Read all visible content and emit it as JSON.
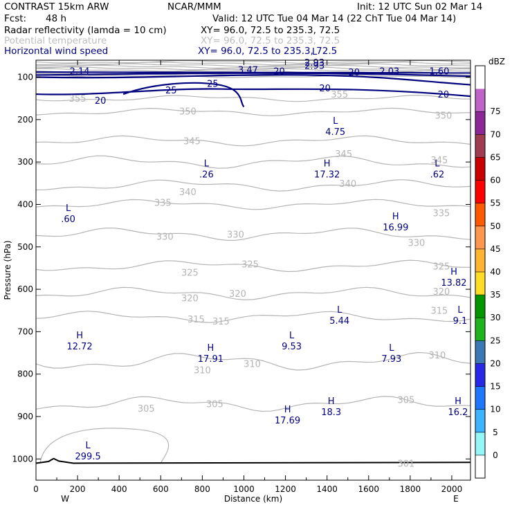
{
  "header": {
    "model": "CONTRAST 15km ARW",
    "org": "NCAR/MMM",
    "init": "Init: 12 UTC Sun 02 Mar 14",
    "fcst_label": "Fcst:",
    "fcst_value": "48 h",
    "valid": "Valid: 12 UTC Tue 04 Mar 14 (22 ChT Tue 04 Mar 14)",
    "fields": [
      {
        "name": "Radar reflectivity (lamda = 10 cm)",
        "xy": "XY=  96.0, 72.5 to 235.3, 72.5",
        "color": "#000000"
      },
      {
        "name": "Potential temperature",
        "xy": "XY=  96.0, 72.5 to 235.3, 72.5",
        "color": "#bdbdbd"
      },
      {
        "name": "Horizontal wind speed",
        "xy": "XY=  96.0, 72.5 to 235.3, 72.5",
        "color": "#00007f"
      }
    ]
  },
  "chart_data": {
    "type": "cross-section",
    "xlabel": "Distance (km)",
    "ylabel": "Pressure (hPa)",
    "xlim": [
      0,
      2090
    ],
    "ylim": [
      1050,
      60
    ],
    "x_ticks": [
      0,
      200,
      400,
      600,
      800,
      1000,
      1200,
      1400,
      1600,
      1800,
      2000
    ],
    "y_ticks": [
      100,
      200,
      300,
      400,
      500,
      600,
      700,
      800,
      900,
      1000
    ],
    "x_end_labels": [
      "W",
      "E"
    ],
    "colorbar": {
      "unit": "dBZ",
      "levels": [
        "0",
        "5",
        "10",
        "15",
        "20",
        "25",
        "30",
        "35",
        "40",
        "45",
        "50",
        "55",
        "60",
        "65",
        "70",
        "75"
      ],
      "colors": [
        "#ffffff",
        "#96f5f5",
        "#3cb4ff",
        "#1e78ff",
        "#2828e6",
        "#3c78b4",
        "#1eb41e",
        "#009600",
        "#ffdc28",
        "#ffb432",
        "#ff9650",
        "#ff5a00",
        "#ff0000",
        "#c80000",
        "#a03c50",
        "#8c2896",
        "#be64c8",
        "#ffffff"
      ]
    },
    "theta_isolines": [
      {
        "label": "355",
        "x": 200,
        "p": 150
      },
      {
        "label": "355",
        "x": 1460,
        "p": 140
      },
      {
        "label": "350",
        "x": 730,
        "p": 180
      },
      {
        "label": "350",
        "x": 1960,
        "p": 190
      },
      {
        "label": "345",
        "x": 750,
        "p": 250
      },
      {
        "label": "345",
        "x": 1480,
        "p": 280
      },
      {
        "label": "345",
        "x": 1940,
        "p": 295
      },
      {
        "label": "340",
        "x": 730,
        "p": 370
      },
      {
        "label": "340",
        "x": 1500,
        "p": 350
      },
      {
        "label": "335",
        "x": 610,
        "p": 395
      },
      {
        "label": "335",
        "x": 1950,
        "p": 420
      },
      {
        "label": "330",
        "x": 620,
        "p": 475
      },
      {
        "label": "330",
        "x": 960,
        "p": 470
      },
      {
        "label": "330",
        "x": 1830,
        "p": 490
      },
      {
        "label": "325",
        "x": 740,
        "p": 560
      },
      {
        "label": "325",
        "x": 1030,
        "p": 540
      },
      {
        "label": "325",
        "x": 1950,
        "p": 545
      },
      {
        "label": "320",
        "x": 740,
        "p": 620
      },
      {
        "label": "320",
        "x": 970,
        "p": 610
      },
      {
        "label": "320",
        "x": 1950,
        "p": 605
      },
      {
        "label": "315",
        "x": 770,
        "p": 670
      },
      {
        "label": "315",
        "x": 890,
        "p": 675
      },
      {
        "label": "315",
        "x": 1940,
        "p": 650
      },
      {
        "label": "310",
        "x": 800,
        "p": 790
      },
      {
        "label": "310",
        "x": 1040,
        "p": 775
      },
      {
        "label": "310",
        "x": 1930,
        "p": 755
      },
      {
        "label": "305",
        "x": 530,
        "p": 880
      },
      {
        "label": "305",
        "x": 860,
        "p": 870
      },
      {
        "label": "305",
        "x": 1780,
        "p": 860
      },
      {
        "label": "301",
        "x": 1780,
        "p": 1010
      }
    ],
    "wind_labels": [
      {
        "label": "2.14",
        "x": 210,
        "p": 85
      },
      {
        "label": "3.47",
        "x": 1020,
        "p": 82
      },
      {
        "label": "20",
        "x": 1170,
        "p": 85
      },
      {
        "label": "2.93",
        "x": 1340,
        "p": 72
      },
      {
        "label": "20",
        "x": 1530,
        "p": 88
      },
      {
        "label": "2.03",
        "x": 1700,
        "p": 85
      },
      {
        "label": "1.60",
        "x": 1940,
        "p": 85
      },
      {
        "label": "25",
        "x": 850,
        "p": 115
      },
      {
        "label": "25",
        "x": 650,
        "p": 130
      },
      {
        "label": "20",
        "x": 1390,
        "p": 125
      },
      {
        "label": "20",
        "x": 310,
        "p": 155
      },
      {
        "label": "20",
        "x": 1960,
        "p": 140
      }
    ],
    "extrema": [
      {
        "kind": "L",
        "value": "2.93",
        "x": 1340,
        "p": 62
      },
      {
        "kind": "L",
        "value": "4.75",
        "x": 1440,
        "p": 225
      },
      {
        "kind": "L",
        "value": ".26",
        "x": 820,
        "p": 325
      },
      {
        "kind": "H",
        "value": "17.32",
        "x": 1400,
        "p": 325
      },
      {
        "kind": "L",
        "value": ".62",
        "x": 1930,
        "p": 325
      },
      {
        "kind": "L",
        "value": ".60",
        "x": 155,
        "p": 430
      },
      {
        "kind": "H",
        "value": "16.99",
        "x": 1730,
        "p": 450
      },
      {
        "kind": "H",
        "value": "13.82",
        "x": 2010,
        "p": 580
      },
      {
        "kind": "L",
        "value": "5.44",
        "x": 1460,
        "p": 670
      },
      {
        "kind": "L",
        "value": "9.1",
        "x": 2040,
        "p": 670
      },
      {
        "kind": "H",
        "value": "12.72",
        "x": 210,
        "p": 730
      },
      {
        "kind": "L",
        "value": "9.53",
        "x": 1230,
        "p": 730
      },
      {
        "kind": "H",
        "value": "17.91",
        "x": 840,
        "p": 760
      },
      {
        "kind": "L",
        "value": "7.93",
        "x": 1710,
        "p": 760
      },
      {
        "kind": "H",
        "value": "18.3",
        "x": 1420,
        "p": 885
      },
      {
        "kind": "H",
        "value": "17.69",
        "x": 1210,
        "p": 905
      },
      {
        "kind": "H",
        "value": "16.2",
        "x": 2030,
        "p": 885
      },
      {
        "kind": "L",
        "value": "299.5",
        "x": 250,
        "p": 990
      }
    ]
  }
}
